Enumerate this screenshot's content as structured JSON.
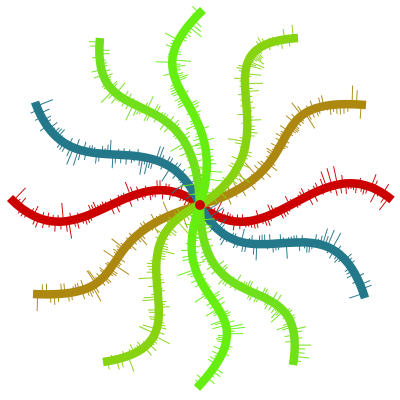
{
  "colors": {
    "background": "#ffffff",
    "red": "#cc0000",
    "teal": "#23788a",
    "olive": "#ad8810",
    "yellow_green": "#88d310",
    "green": "#70e01a",
    "lime": "#66ee10"
  },
  "arms": [
    {
      "name": "arm-red-east",
      "color": "red"
    },
    {
      "name": "arm-red-west",
      "color": "red"
    },
    {
      "name": "arm-teal-southeast",
      "color": "teal"
    },
    {
      "name": "arm-teal-northwest",
      "color": "teal"
    },
    {
      "name": "arm-olive-northeast",
      "color": "olive"
    },
    {
      "name": "arm-olive-southwest",
      "color": "olive"
    },
    {
      "name": "arm-yellowgreen-northeast",
      "color": "yellow_green"
    },
    {
      "name": "arm-yellowgreen-south",
      "color": "yellow_green"
    },
    {
      "name": "arm-green-northwest",
      "color": "green"
    },
    {
      "name": "arm-green-southeast",
      "color": "green"
    },
    {
      "name": "arm-lime-north",
      "color": "lime"
    },
    {
      "name": "arm-lime-south",
      "color": "lime"
    }
  ]
}
